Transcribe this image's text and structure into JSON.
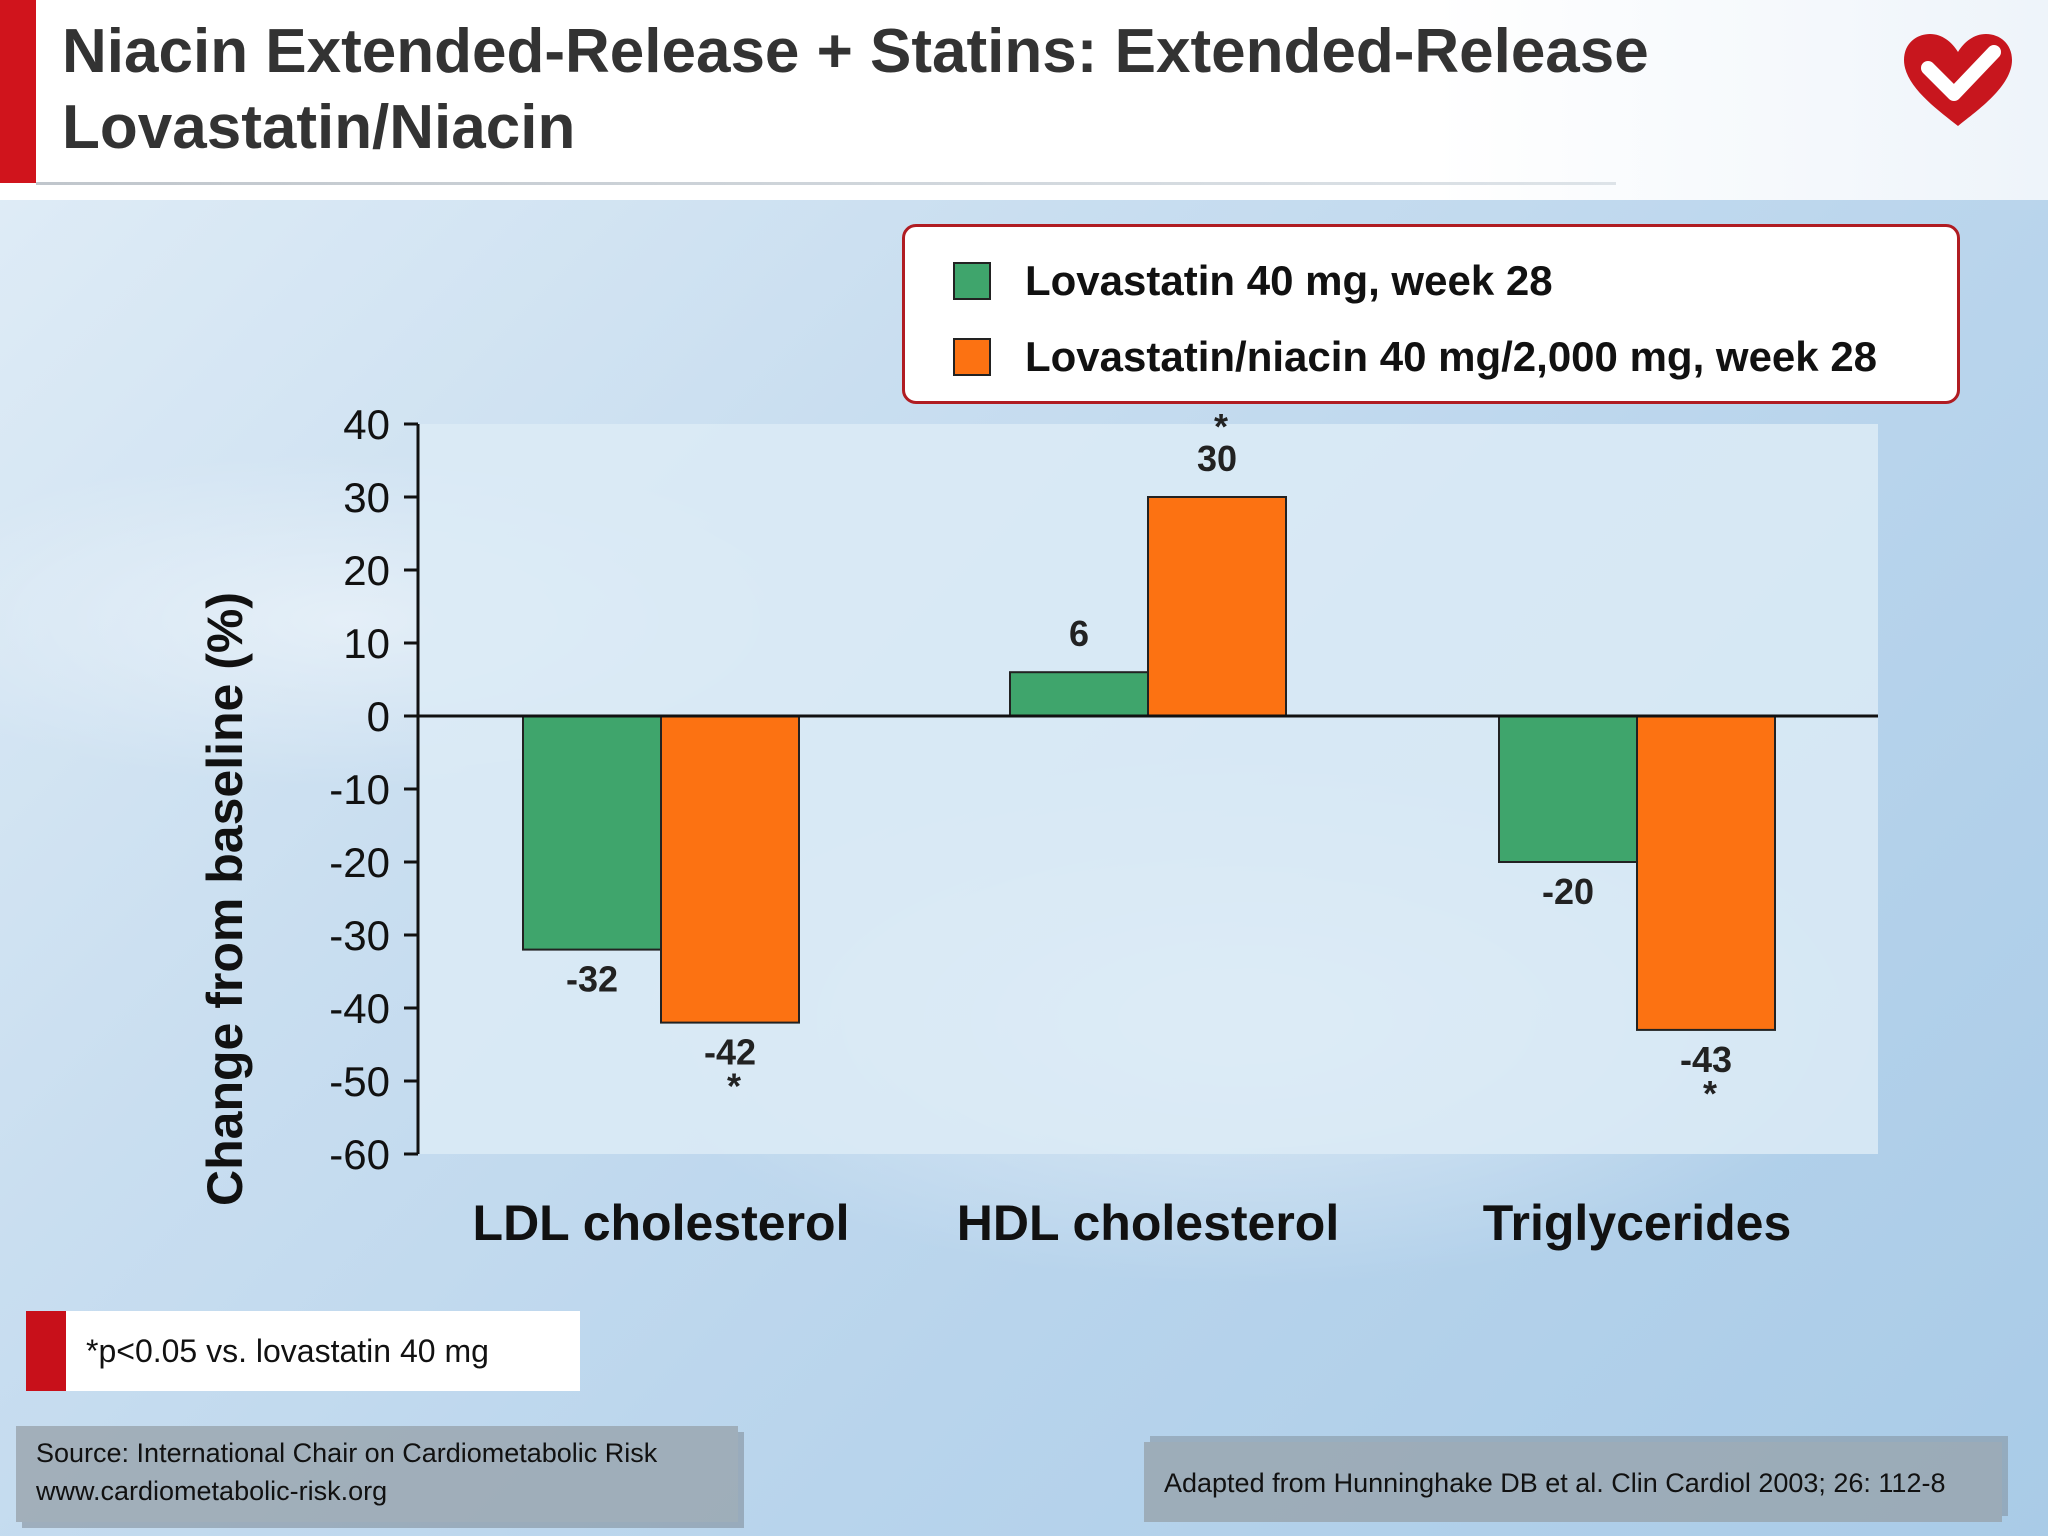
{
  "header": {
    "title_line1": "Niacin Extended-Release + Statins: Extended-Release",
    "title_line2": "Lovastatin/Niacin",
    "logo_icon": "heart-check-icon",
    "accent_color": "#d0141c"
  },
  "legend": [
    {
      "label": "Lovastatin 40 mg, week 28",
      "color": "#3fa56c"
    },
    {
      "label": "Lovastatin/niacin 40 mg/2,000 mg, week 28",
      "color": "#fc7212"
    }
  ],
  "footnote": "*p<0.05 vs. lovastatin 40 mg",
  "source": {
    "line1": "Source: International Chair on Cardiometabolic Risk",
    "line2": "www.cardiometabolic-risk.org"
  },
  "adapted": "Adapted from Hunninghake DB et al. Clin Cardiol 2003; 26: 112-8",
  "chart_data": {
    "type": "bar",
    "ylabel": "Change from baseline (%)",
    "ylim": [
      -60,
      40
    ],
    "yticks": [
      40,
      30,
      20,
      10,
      0,
      -10,
      -20,
      -30,
      -40,
      -50,
      -60
    ],
    "categories": [
      "LDL cholesterol",
      "HDL cholesterol",
      "Triglycerides"
    ],
    "series": [
      {
        "name": "Lovastatin 40 mg, week 28",
        "color": "#3fa56c",
        "values": [
          -32,
          6,
          -20
        ],
        "significant": [
          false,
          false,
          false
        ]
      },
      {
        "name": "Lovastatin/niacin 40 mg/2,000 mg, week 28",
        "color": "#fc7212",
        "values": [
          -42,
          30,
          -43
        ],
        "significant": [
          true,
          true,
          true
        ]
      }
    ],
    "significance_marker": "*",
    "grid": false,
    "legend_position": "top-right"
  }
}
